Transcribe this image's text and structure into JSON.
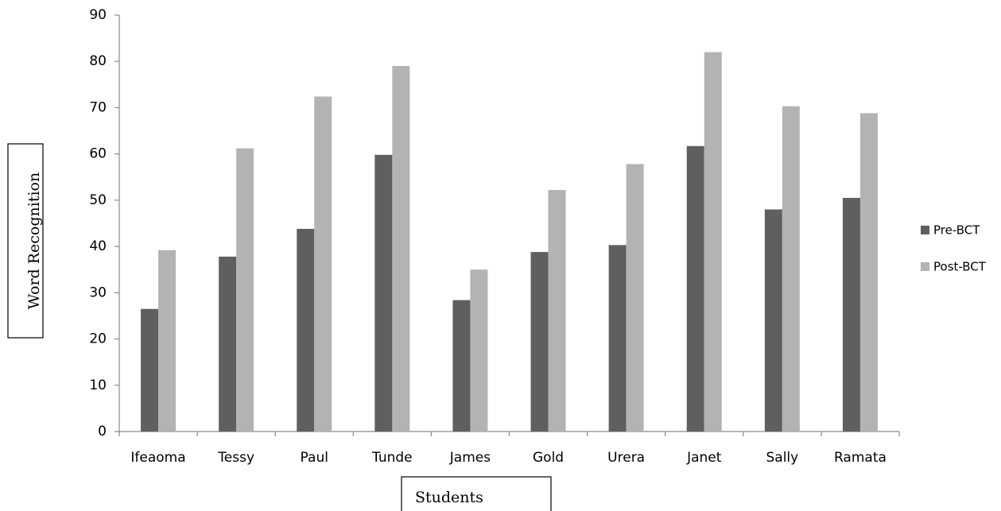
{
  "chart_data": {
    "type": "bar",
    "title": "",
    "xlabel": "Students",
    "ylabel": "Word Recognition",
    "ylim": [
      0,
      90
    ],
    "yticks": [
      0,
      10,
      20,
      30,
      40,
      50,
      60,
      70,
      80,
      90
    ],
    "grid": false,
    "legend_position": "right",
    "categories": [
      "Ifeaoma",
      "Tessy",
      "Paul",
      "Tunde",
      "James",
      "Gold",
      "Urera",
      "Janet",
      "Sally",
      "Ramata"
    ],
    "series": [
      {
        "name": "Pre-BCT",
        "color": "#5f5f5f",
        "values": [
          26.5,
          37.8,
          43.8,
          59.8,
          28.4,
          38.8,
          40.3,
          61.7,
          48.0,
          50.5
        ]
      },
      {
        "name": "Post-BCT",
        "color": "#b3b3b3",
        "values": [
          39.2,
          61.2,
          72.4,
          79.0,
          35.0,
          52.2,
          57.8,
          82.0,
          70.3,
          68.8
        ]
      }
    ]
  }
}
